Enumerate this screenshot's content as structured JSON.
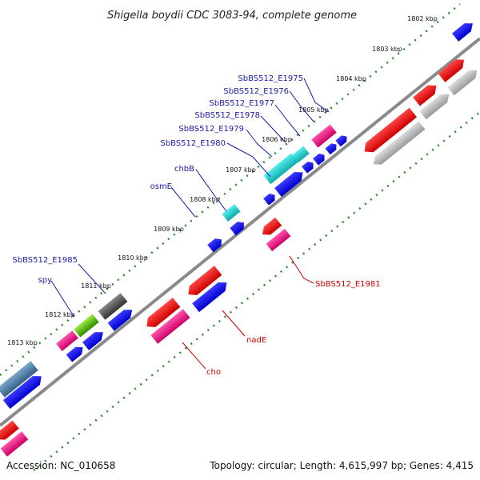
{
  "title": "Shigella boydii CDC 3083-94, complete genome",
  "footer": {
    "accession": "Accession: NC_010658",
    "summary": "Topology: circular; Length: 4,615,997 bp; Genes: 4,415"
  },
  "ticks": [
    "1802 kbp",
    "1803 kbp",
    "1804 kbp",
    "1805 kbp",
    "1806 kbp",
    "1807 kbp",
    "1808 kbp",
    "1809 kbp",
    "1810 kbp",
    "1811 kbp",
    "1812 kbp",
    "1813 kbp"
  ],
  "labels_forward": [
    "SbBS512_E1975",
    "SbBS512_E1976",
    "SbBS512_E1977",
    "SbBS512_E1978",
    "SbBS512_E1979",
    "SbBS512_E1980",
    "chbB",
    "osmE",
    "SbBS512_E1985",
    "spy"
  ],
  "labels_reverse": [
    "SbBS512_E1981",
    "nadE",
    "cho"
  ],
  "colors": {
    "forward_label": "#1a1aa8",
    "reverse_label": "#cc0000",
    "backbone": "#808080",
    "tick": "#2a8a2a",
    "cds_blue": "#0000ee",
    "cds_red": "#ee0000",
    "pink": "#ee1188",
    "cyan": "#22cccc",
    "gray": "#b8b8b8",
    "dark_gray": "#555555",
    "green": "#66cc22",
    "steel": "#4f7fab"
  }
}
